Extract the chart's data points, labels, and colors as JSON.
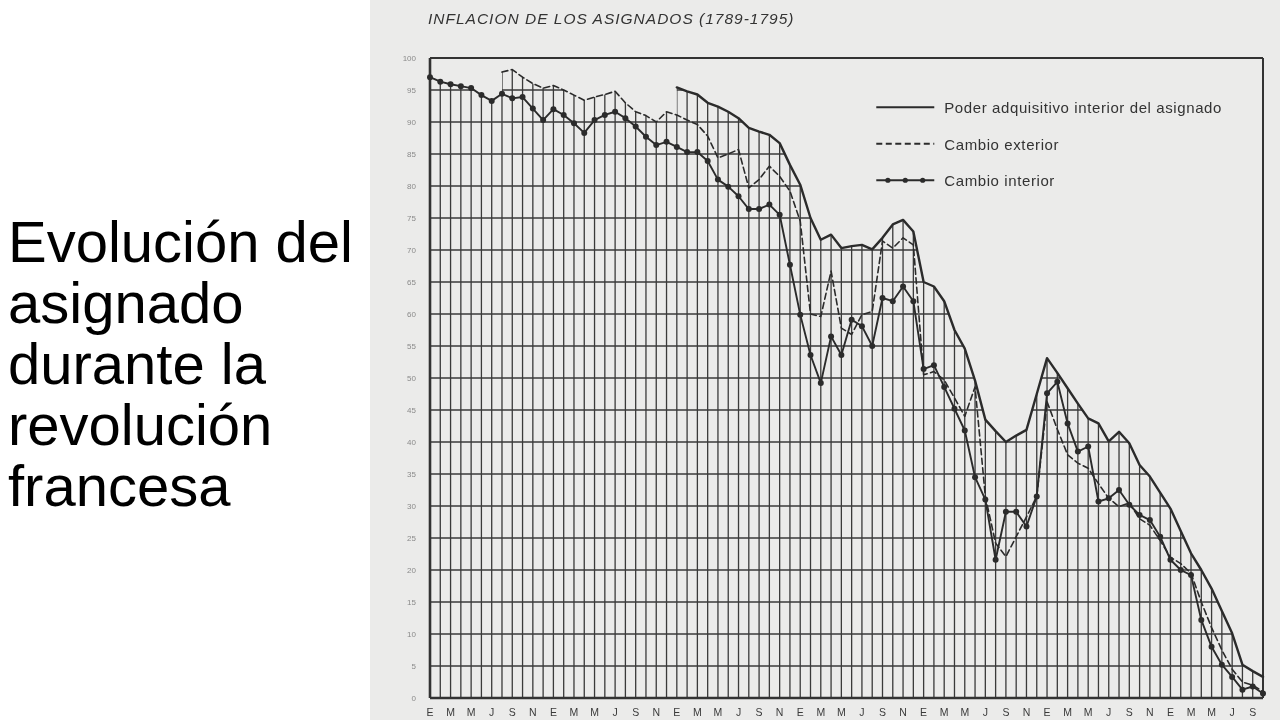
{
  "chart_data": {
    "type": "line",
    "title": "Evolución del asignado durante la revolución francesa",
    "subtitle": "INFLACION DE LOS ASIGNADOS (1789-1795)",
    "categories": [
      "E",
      null,
      "M",
      null,
      "M",
      null,
      "J",
      null,
      "S",
      null,
      "N",
      null,
      "E",
      null,
      "M",
      null,
      "M",
      null,
      "J",
      null,
      "S",
      null,
      "N",
      null,
      "E",
      null,
      "M",
      null,
      "M",
      null,
      "J",
      null,
      "S",
      null,
      "N",
      null,
      "E",
      null,
      "M",
      null,
      "M",
      null,
      "J",
      null,
      "S",
      null,
      "N",
      null,
      "E",
      null,
      "M",
      null,
      "M",
      null,
      "J",
      null,
      "S",
      null,
      "N",
      null,
      "E",
      null,
      "M",
      null,
      "M",
      null,
      "J",
      null,
      "S",
      null,
      "N",
      null,
      "E",
      null,
      "M",
      null,
      "M",
      null,
      "J",
      null,
      "S",
      null
    ],
    "ylim": [
      0,
      100
    ],
    "yticks": [
      0,
      5,
      10,
      15,
      20,
      25,
      30,
      35,
      40,
      45,
      50,
      55,
      60,
      65,
      70,
      75,
      80,
      85,
      90,
      95,
      100
    ],
    "grid": true,
    "legend": "top right",
    "series": [
      {
        "name": "Poder adquisitivo interior del asignado",
        "color": "#2b2b2b",
        "line_style": "solid",
        "marker": "none",
        "values": [
          null,
          null,
          null,
          null,
          null,
          null,
          null,
          null,
          null,
          null,
          null,
          null,
          null,
          null,
          null,
          null,
          null,
          null,
          null,
          null,
          null,
          null,
          null,
          null,
          95.4,
          94.8,
          94.3,
          93.0,
          92.4,
          91.6,
          90.6,
          89.1,
          88.5,
          88.0,
          86.7,
          83.3,
          80.2,
          75.0,
          71.6,
          72.4,
          70.3,
          70.6,
          70.8,
          70.1,
          71.9,
          74.0,
          74.7,
          72.9,
          65.0,
          64.3,
          62.0,
          57.5,
          54.6,
          49.6,
          43.5,
          41.7,
          40.0,
          41.0,
          41.9,
          47.5,
          53.1,
          50.8,
          48.4,
          46.0,
          43.7,
          42.9,
          40.1,
          41.6,
          39.8,
          36.4,
          34.6,
          32.1,
          29.6,
          26.1,
          22.6,
          20.0,
          17.1,
          13.6,
          10.1,
          5.2,
          4.2,
          3.3
        ]
      },
      {
        "name": "Cambio exterior",
        "color": "#2b2b2b",
        "line_style": "dashed",
        "marker": "none",
        "values": [
          null,
          null,
          null,
          null,
          null,
          null,
          null,
          97.8,
          98.2,
          97.0,
          96.0,
          95.3,
          95.7,
          95.0,
          94.2,
          93.4,
          93.9,
          94.3,
          94.8,
          93.0,
          91.6,
          91.0,
          90.0,
          91.6,
          91.1,
          90.3,
          89.6,
          87.8,
          84.4,
          85.0,
          85.7,
          79.7,
          81.0,
          83.1,
          81.5,
          79.2,
          74.5,
          60.0,
          59.6,
          66.7,
          57.8,
          56.8,
          59.9,
          60.4,
          71.4,
          70.3,
          71.9,
          70.8,
          50.5,
          51.0,
          49.7,
          46.9,
          44.0,
          48.6,
          31.5,
          24.2,
          22.1,
          25.2,
          28.3,
          31.5,
          46.3,
          42.0,
          38.0,
          36.7,
          35.9,
          33.5,
          31.2,
          29.9,
          30.5,
          28.0,
          27.0,
          24.6,
          22.0,
          21.0,
          19.5,
          15.0,
          11.0,
          7.5,
          4.5,
          2.5,
          2.0,
          1.0
        ]
      },
      {
        "name": "Cambio interior",
        "color": "#2b2b2b",
        "line_style": "solid",
        "marker": "circle",
        "values": [
          97.0,
          96.3,
          95.9,
          95.6,
          95.3,
          94.2,
          93.3,
          94.4,
          93.7,
          93.9,
          92.1,
          90.3,
          92.0,
          91.1,
          89.8,
          88.3,
          90.3,
          91.1,
          91.6,
          90.6,
          89.3,
          87.7,
          86.4,
          86.9,
          86.1,
          85.3,
          85.3,
          83.9,
          81.0,
          79.9,
          78.4,
          76.4,
          76.4,
          77.1,
          75.5,
          67.7,
          59.9,
          53.6,
          49.2,
          56.5,
          53.6,
          59.1,
          58.1,
          55.0,
          62.5,
          62.0,
          64.3,
          62.0,
          51.4,
          52.0,
          48.6,
          45.2,
          41.8,
          34.5,
          31.0,
          21.6,
          29.1,
          29.1,
          26.8,
          31.5,
          47.6,
          49.4,
          42.9,
          38.5,
          39.3,
          30.7,
          31.2,
          32.5,
          30.2,
          28.6,
          27.8,
          25.2,
          21.6,
          20.0,
          19.2,
          12.2,
          8.0,
          5.2,
          3.3,
          1.3,
          1.8,
          0.7
        ]
      }
    ]
  }
}
